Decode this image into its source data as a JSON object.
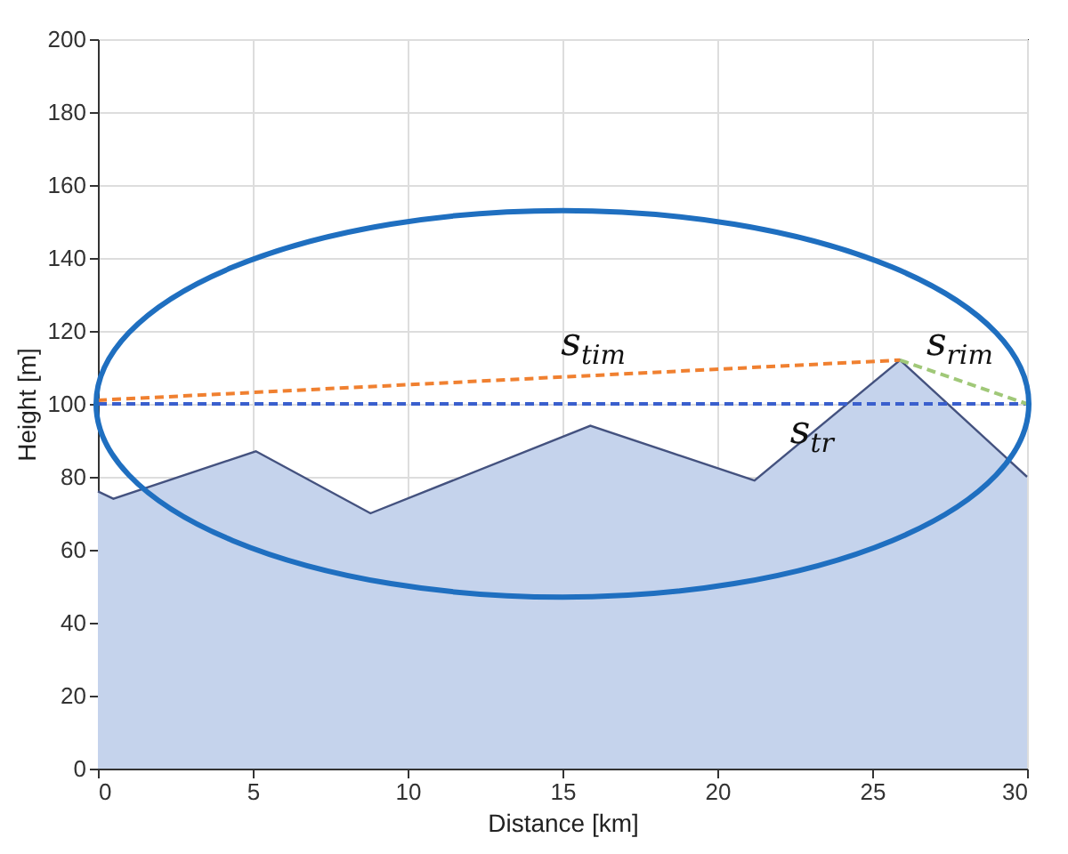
{
  "chart_data": {
    "type": "area",
    "xlabel": "Distance [km]",
    "ylabel": "Height [m]",
    "xlim": [
      0,
      30
    ],
    "ylim": [
      0,
      200
    ],
    "xticks": [
      0,
      5,
      10,
      15,
      20,
      25,
      30
    ],
    "yticks": [
      0,
      20,
      40,
      60,
      80,
      100,
      120,
      140,
      160,
      180,
      200
    ],
    "grid": true,
    "series": [
      {
        "color": "#c5d3ec",
        "x": [
          0,
          0.5,
          5.1,
          8.8,
          15.9,
          21.2,
          25.9,
          30
        ],
        "values": [
          76,
          74,
          87,
          70,
          94,
          79,
          112,
          80
        ]
      },
      {
        "type": "line",
        "color": "#f08030",
        "line_style": "dashed",
        "x": [
          0,
          25.9
        ],
        "values": [
          101,
          112
        ]
      },
      {
        "type": "line",
        "color": "#3a5fcd",
        "line_style": "dashed",
        "x": [
          0,
          30
        ],
        "values": [
          100,
          100
        ]
      },
      {
        "type": "line",
        "color": "#a0c878",
        "line_style": "dashed",
        "x": [
          25.9,
          30
        ],
        "values": [
          112,
          100
        ]
      }
    ],
    "annotations": [
      {
        "text": "s$_{tim}$",
        "x": 15.6,
        "y": 107.6
      },
      {
        "text": "s$_{tr}$",
        "x": 23,
        "y": 100
      },
      {
        "text": "s$_{rim}$",
        "x": 27.4,
        "y": 107.5
      }
    ]
  }
}
